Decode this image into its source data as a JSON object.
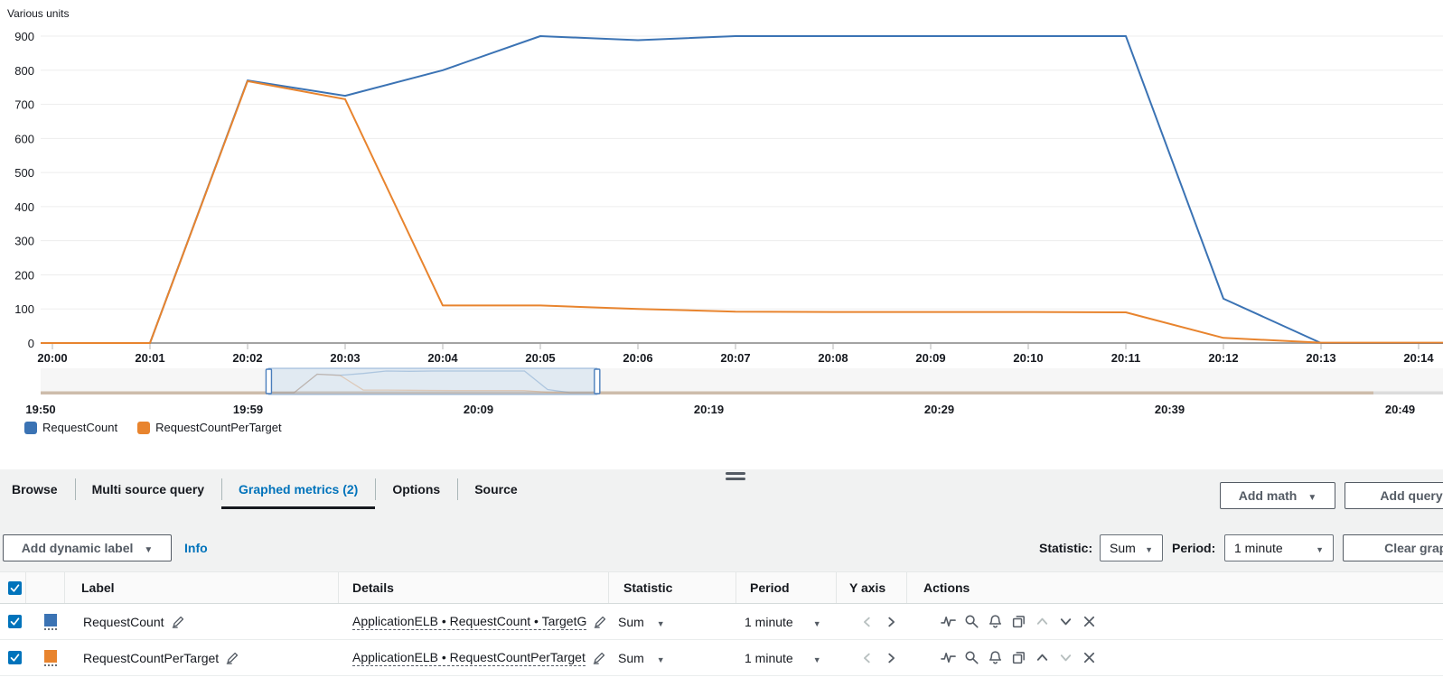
{
  "colors": {
    "accent": "#0073bb",
    "icon": "#545b64",
    "series_blue": "#3b73b4",
    "series_orange": "#e8842e"
  },
  "chart_data": {
    "type": "line",
    "title": "Various units",
    "ylabel": "Various units",
    "ylim": [
      0,
      900
    ],
    "yticks": [
      0,
      100,
      200,
      300,
      400,
      500,
      600,
      700,
      800,
      900
    ],
    "grid": true,
    "legend_position": "bottom-left",
    "xticks": [
      {
        "t": 0,
        "label": "20:00"
      },
      {
        "t": 1,
        "label": "20:01"
      },
      {
        "t": 2,
        "label": "20:02"
      },
      {
        "t": 3,
        "label": "20:03"
      },
      {
        "t": 4,
        "label": "20:04"
      },
      {
        "t": 5,
        "label": "20:05"
      },
      {
        "t": 6,
        "label": "20:06"
      },
      {
        "t": 7,
        "label": "20:07"
      },
      {
        "t": 8,
        "label": "20:08"
      },
      {
        "t": 9,
        "label": "20:09"
      },
      {
        "t": 10,
        "label": "20:10"
      },
      {
        "t": 11,
        "label": "20:11"
      },
      {
        "t": 12,
        "label": "20:12"
      },
      {
        "t": 13,
        "label": "20:13"
      },
      {
        "t": 14,
        "label": "20:14"
      }
    ],
    "series": [
      {
        "name": "RequestCount",
        "color": "#3b73b4",
        "points": [
          [
            -0.12,
            0
          ],
          [
            0,
            0
          ],
          [
            1,
            0
          ],
          [
            2,
            770
          ],
          [
            3,
            725
          ],
          [
            4,
            800
          ],
          [
            5,
            900
          ],
          [
            6,
            888
          ],
          [
            7,
            900
          ],
          [
            8,
            900
          ],
          [
            9,
            900
          ],
          [
            10,
            900
          ],
          [
            11,
            900
          ],
          [
            12,
            130
          ],
          [
            13,
            0
          ],
          [
            14.25,
            0
          ]
        ]
      },
      {
        "name": "RequestCountPerTarget",
        "color": "#e8842e",
        "points": [
          [
            -0.12,
            0
          ],
          [
            0,
            0
          ],
          [
            1,
            0
          ],
          [
            2,
            768
          ],
          [
            3,
            715
          ],
          [
            4,
            110
          ],
          [
            5,
            110
          ],
          [
            6,
            100
          ],
          [
            7,
            92
          ],
          [
            8,
            91
          ],
          [
            9,
            91
          ],
          [
            10,
            91
          ],
          [
            11,
            90
          ],
          [
            12,
            15
          ],
          [
            13,
            1
          ],
          [
            14.25,
            1
          ]
        ]
      }
    ],
    "overview": {
      "labels": [
        {
          "t": -10,
          "label": "19:50"
        },
        {
          "t": -1,
          "label": "19:59"
        },
        {
          "t": 9,
          "label": "20:09"
        },
        {
          "t": 19,
          "label": "20:19"
        },
        {
          "t": 29,
          "label": "20:29"
        },
        {
          "t": 39,
          "label": "20:39"
        },
        {
          "t": 49,
          "label": "20:49"
        }
      ],
      "brush_range_t": [
        -0.1,
        14.15
      ]
    }
  },
  "tabs": [
    {
      "label": "Browse"
    },
    {
      "label": "Multi source query"
    },
    {
      "label": "Graphed metrics (2)"
    },
    {
      "label": "Options"
    },
    {
      "label": "Source"
    }
  ],
  "toolbar": {
    "add_math_label": "Add math",
    "add_query_label": "Add query"
  },
  "controls": {
    "add_dynamic_label": "Add dynamic label",
    "info_label": "Info",
    "statistic_label": "Statistic:",
    "statistic_value": "Sum",
    "period_label": "Period:",
    "period_value": "1 minute",
    "clear_graph_label": "Clear graph"
  },
  "table": {
    "headers": {
      "label": "Label",
      "details": "Details",
      "statistic": "Statistic",
      "period": "Period",
      "y_axis": "Y axis",
      "actions": "Actions"
    },
    "rows": [
      {
        "checked": true,
        "color": "#3b73b4",
        "label": "RequestCount",
        "details": "ApplicationELB • RequestCount • TargetG",
        "statistic": "Sum",
        "period": "1 minute"
      },
      {
        "checked": true,
        "color": "#e8842e",
        "label": "RequestCountPerTarget",
        "details": "ApplicationELB • RequestCountPerTarget",
        "statistic": "Sum",
        "period": "1 minute"
      }
    ]
  }
}
